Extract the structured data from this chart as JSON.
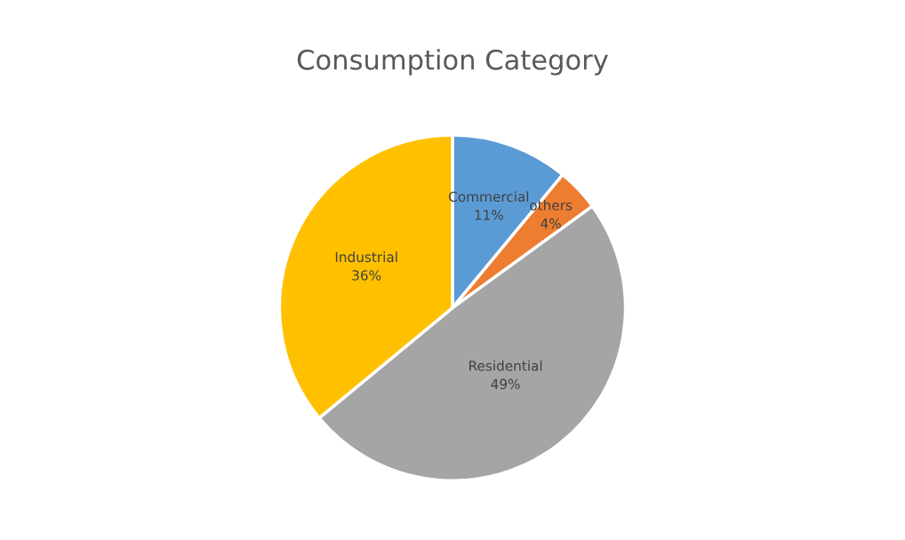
{
  "chart_data": {
    "type": "pie",
    "title": "Consumption Category",
    "categories": [
      "Commercial",
      "others",
      "Residential",
      "Industrial"
    ],
    "values": [
      11,
      4,
      49,
      36
    ],
    "colors": [
      "#5b9bd5",
      "#ed7d31",
      "#a5a5a5",
      "#ffc000"
    ],
    "value_labels": [
      "11%",
      "4%",
      "49%",
      "36%"
    ],
    "legend": false
  }
}
